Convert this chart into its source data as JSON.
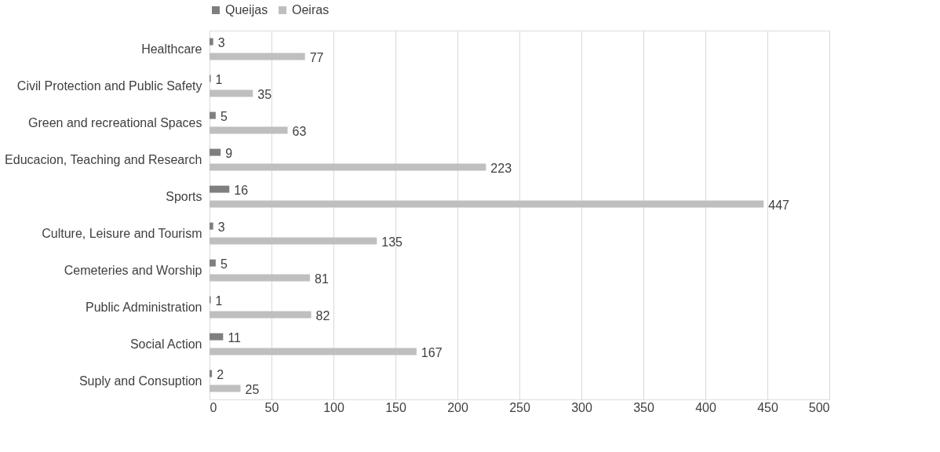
{
  "chart_data": {
    "type": "bar",
    "orientation": "horizontal",
    "categories": [
      "Healthcare",
      "Civil Protection and Public Safety",
      "Green and recreational Spaces",
      "Educacion, Teaching and Research",
      "Sports",
      "Culture, Leisure and Tourism",
      "Cemeteries and Worship",
      "Public Administration",
      "Social Action",
      "Suply and Consuption"
    ],
    "series": [
      {
        "name": "Queijas",
        "color": "#7f7f7f",
        "values": [
          3,
          1,
          5,
          9,
          16,
          3,
          5,
          1,
          11,
          2
        ]
      },
      {
        "name": "Oeiras",
        "color": "#bfbfbf",
        "values": [
          77,
          35,
          63,
          223,
          447,
          135,
          81,
          82,
          167,
          25
        ]
      }
    ],
    "xlim": [
      0,
      500
    ],
    "xticks": [
      0,
      50,
      100,
      150,
      200,
      250,
      300,
      350,
      400,
      450,
      500
    ],
    "grid": "x",
    "legend": "top",
    "data_labels": true
  }
}
